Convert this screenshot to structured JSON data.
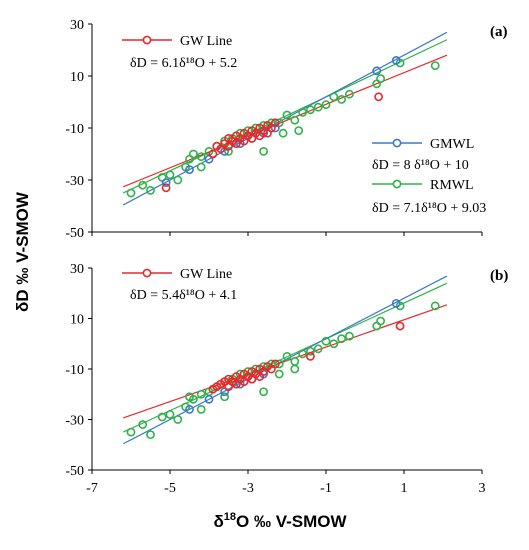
{
  "chart_data": [
    {
      "type": "scatter",
      "panel_label": "(a)",
      "ylabel_html": "δD ‰ V-SMOW",
      "xlim": [
        -7,
        3
      ],
      "ylim": [
        -50,
        30
      ],
      "yticks": [
        30,
        10,
        -10,
        -30,
        -50
      ],
      "xticks": [
        -7,
        -5,
        -3,
        -1,
        1,
        3
      ],
      "colors": {
        "gw": "#e8282b",
        "gmwl": "#3b78c9",
        "rmwl": "#2fb24a"
      },
      "legend": [
        {
          "key": "gw",
          "name": "GW Line",
          "equation": "δD = 6.1δ¹⁸O + 5.2"
        },
        {
          "key": "gmwl",
          "name": "GMWL",
          "equation": "δD = 8 δ¹⁸O + 10"
        },
        {
          "key": "rmwl",
          "name": "RMWL",
          "equation": "δD = 7.1δ¹⁸O + 9.03"
        }
      ],
      "series": [
        {
          "key": "rmwl",
          "slope": 7.1,
          "intercept": 9.03,
          "x_range": [
            -6.2,
            2.1
          ],
          "points": [
            [
              -6,
              -35
            ],
            [
              -5.7,
              -32
            ],
            [
              -5.5,
              -34
            ],
            [
              -5.2,
              -29
            ],
            [
              -5,
              -28
            ],
            [
              -4.8,
              -30
            ],
            [
              -4.6,
              -25
            ],
            [
              -4.5,
              -22
            ],
            [
              -4.4,
              -20
            ],
            [
              -4.2,
              -21
            ],
            [
              -4,
              -19
            ],
            [
              -3.8,
              -17
            ],
            [
              -3.6,
              -15
            ],
            [
              -3.4,
              -14
            ],
            [
              -3.2,
              -12
            ],
            [
              -3,
              -11
            ],
            [
              -2.8,
              -10
            ],
            [
              -2.6,
              -9
            ],
            [
              -2.4,
              -8
            ],
            [
              -2.2,
              -8
            ],
            [
              -2,
              -5
            ],
            [
              -1.8,
              -7
            ],
            [
              -1.6,
              -4
            ],
            [
              -1.4,
              -3
            ],
            [
              -1.2,
              -2
            ],
            [
              -1,
              -1
            ],
            [
              -0.8,
              2
            ],
            [
              -0.6,
              1
            ],
            [
              -0.4,
              3
            ],
            [
              0.3,
              7
            ],
            [
              0.4,
              9
            ],
            [
              0.9,
              15
            ],
            [
              1.8,
              14
            ],
            [
              -4.2,
              -25
            ],
            [
              -3.5,
              -19
            ],
            [
              -2.6,
              -19
            ],
            [
              -1.7,
              -11
            ],
            [
              -2.1,
              -12
            ]
          ]
        },
        {
          "key": "gmwl",
          "slope": 8,
          "intercept": 10,
          "x_range": [
            -6.2,
            2.1
          ],
          "points": [
            [
              -5.1,
              -31
            ],
            [
              -4.5,
              -26
            ],
            [
              -4,
              -22
            ],
            [
              -3.6,
              -19
            ],
            [
              -3.2,
              -16
            ],
            [
              -2.9,
              -14
            ],
            [
              -2.6,
              -12
            ],
            [
              -2.3,
              -10
            ],
            [
              0.3,
              12
            ],
            [
              0.8,
              16
            ]
          ]
        },
        {
          "key": "gw",
          "slope": 6.1,
          "intercept": 5.2,
          "x_range": [
            -6.2,
            2.1
          ],
          "points": [
            [
              -5.1,
              -33
            ],
            [
              -3.9,
              -20
            ],
            [
              -3.8,
              -17
            ],
            [
              -3.7,
              -18
            ],
            [
              -3.6,
              -16
            ],
            [
              -3.5,
              -14
            ],
            [
              -3.4,
              -15
            ],
            [
              -3.3,
              -13
            ],
            [
              -3.2,
              -14
            ],
            [
              -3.1,
              -12
            ],
            [
              -3,
              -13
            ],
            [
              -2.9,
              -11
            ],
            [
              -2.8,
              -12
            ],
            [
              -2.7,
              -10
            ],
            [
              -2.6,
              -11
            ],
            [
              -2.5,
              -9
            ],
            [
              -2.4,
              -10
            ],
            [
              -2.3,
              -8
            ],
            [
              -3.5,
              -17
            ],
            [
              -3.3,
              -16
            ],
            [
              -3.1,
              -15
            ],
            [
              -2.9,
              -14
            ],
            [
              -2.7,
              -13
            ],
            [
              -2.5,
              -12
            ],
            [
              0.35,
              2
            ]
          ]
        }
      ]
    },
    {
      "type": "scatter",
      "panel_label": "(b)",
      "xlabel_html": "δ18O ‰ V-SMOW",
      "xlim": [
        -7,
        3
      ],
      "ylim": [
        -50,
        30
      ],
      "yticks": [
        30,
        10,
        -10,
        -30,
        -50
      ],
      "xticks": [
        -7,
        -5,
        -3,
        -1,
        1,
        3
      ],
      "xtick_labels": [
        "-7",
        "-5",
        "-3",
        "-1",
        "1",
        "3"
      ],
      "colors": {
        "gw": "#e8282b",
        "gmwl": "#3b78c9",
        "rmwl": "#2fb24a"
      },
      "legend": [
        {
          "key": "gw",
          "name": "GW Line",
          "equation": "δD = 5.4δ¹⁸O + 4.1"
        }
      ],
      "series": [
        {
          "key": "rmwl",
          "slope": 7.1,
          "intercept": 9.03,
          "x_range": [
            -6.2,
            2.1
          ],
          "points": [
            [
              -6,
              -35
            ],
            [
              -5.7,
              -32
            ],
            [
              -5.5,
              -36
            ],
            [
              -5.2,
              -29
            ],
            [
              -5,
              -28
            ],
            [
              -4.8,
              -30
            ],
            [
              -4.6,
              -25
            ],
            [
              -4.5,
              -21
            ],
            [
              -4.4,
              -22
            ],
            [
              -4.2,
              -20
            ],
            [
              -4,
              -19
            ],
            [
              -3.8,
              -17
            ],
            [
              -3.6,
              -15
            ],
            [
              -3.4,
              -14
            ],
            [
              -3.2,
              -12
            ],
            [
              -3,
              -11
            ],
            [
              -2.8,
              -10
            ],
            [
              -2.6,
              -9
            ],
            [
              -2.4,
              -8
            ],
            [
              -2.2,
              -8
            ],
            [
              -2,
              -5
            ],
            [
              -1.8,
              -7
            ],
            [
              -1.6,
              -4
            ],
            [
              -1.4,
              -3
            ],
            [
              -1.2,
              -2
            ],
            [
              -1,
              1
            ],
            [
              -0.8,
              0
            ],
            [
              -0.6,
              2
            ],
            [
              -0.4,
              3
            ],
            [
              0.3,
              7
            ],
            [
              0.4,
              9
            ],
            [
              0.9,
              15
            ],
            [
              1.8,
              15
            ],
            [
              -4.2,
              -26
            ],
            [
              -3.6,
              -21
            ],
            [
              -2.6,
              -19
            ],
            [
              -1.8,
              -10
            ],
            [
              -2.2,
              -12
            ]
          ]
        },
        {
          "key": "gmwl",
          "slope": 8,
          "intercept": 10,
          "x_range": [
            -6.2,
            2.1
          ],
          "points": [
            [
              -4.5,
              -26
            ],
            [
              -4,
              -22
            ],
            [
              -3.6,
              -19
            ],
            [
              -3.2,
              -16
            ],
            [
              -2.9,
              -14
            ],
            [
              -2.6,
              -12
            ],
            [
              0.8,
              16
            ]
          ]
        },
        {
          "key": "gw",
          "slope": 5.4,
          "intercept": 4.1,
          "x_range": [
            -6.2,
            2.1
          ],
          "points": [
            [
              -3.9,
              -18
            ],
            [
              -3.8,
              -17
            ],
            [
              -3.7,
              -16
            ],
            [
              -3.6,
              -15
            ],
            [
              -3.5,
              -14
            ],
            [
              -3.4,
              -15
            ],
            [
              -3.3,
              -13
            ],
            [
              -3.2,
              -14
            ],
            [
              -3.1,
              -12
            ],
            [
              -3,
              -13
            ],
            [
              -2.9,
              -11
            ],
            [
              -2.8,
              -12
            ],
            [
              -2.7,
              -10
            ],
            [
              -2.6,
              -11
            ],
            [
              -2.5,
              -9
            ],
            [
              -2.4,
              -10
            ],
            [
              -2.3,
              -8
            ],
            [
              -3.5,
              -17
            ],
            [
              -3.3,
              -16
            ],
            [
              -3.1,
              -15
            ],
            [
              -2.9,
              -14
            ],
            [
              -2.7,
              -13
            ],
            [
              -1.4,
              -5
            ],
            [
              0.9,
              7
            ]
          ]
        }
      ]
    }
  ]
}
